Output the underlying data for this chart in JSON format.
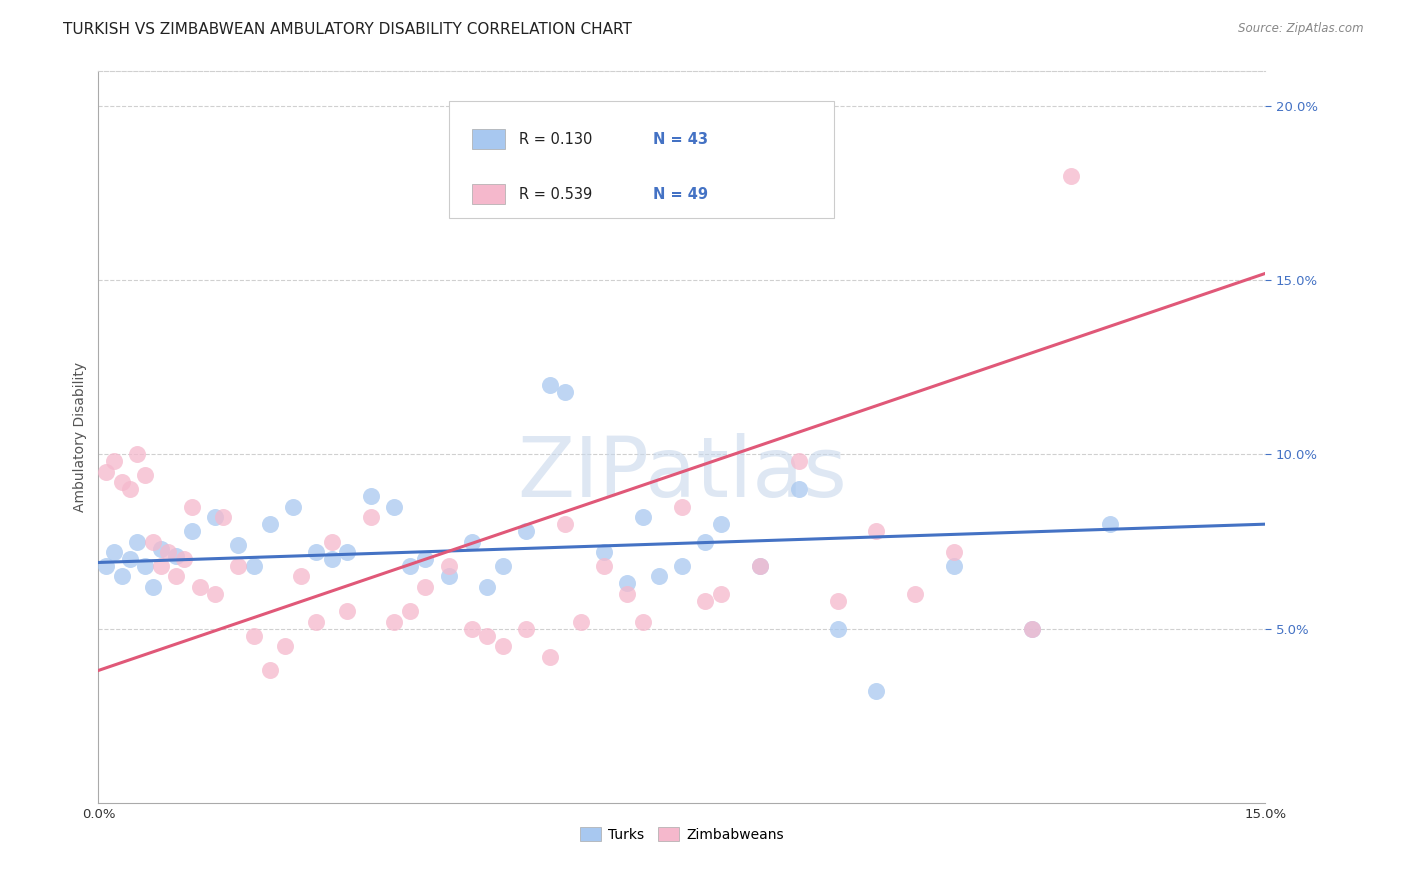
{
  "title": "TURKISH VS ZIMBABWEAN AMBULATORY DISABILITY CORRELATION CHART",
  "source": "Source: ZipAtlas.com",
  "ylabel": "Ambulatory Disability",
  "xmin": 0.0,
  "xmax": 0.15,
  "ymin": 0.0,
  "ymax": 0.21,
  "yticks": [
    0.05,
    0.1,
    0.15,
    0.2
  ],
  "ytick_labels": [
    "5.0%",
    "10.0%",
    "15.0%",
    "20.0%"
  ],
  "turks_color": "#a8c8f0",
  "zimbabweans_color": "#f5b8cc",
  "turks_line_color": "#4472c4",
  "zimbabweans_line_color": "#e05878",
  "R_turks": 0.13,
  "N_turks": 43,
  "R_zimbabweans": 0.539,
  "N_zimbabweans": 49,
  "turks_x": [
    0.001,
    0.002,
    0.003,
    0.004,
    0.005,
    0.006,
    0.007,
    0.008,
    0.01,
    0.012,
    0.015,
    0.018,
    0.02,
    0.022,
    0.025,
    0.028,
    0.03,
    0.032,
    0.035,
    0.038,
    0.04,
    0.042,
    0.045,
    0.048,
    0.05,
    0.052,
    0.055,
    0.058,
    0.06,
    0.065,
    0.068,
    0.07,
    0.072,
    0.075,
    0.078,
    0.08,
    0.085,
    0.09,
    0.095,
    0.1,
    0.11,
    0.12,
    0.13
  ],
  "turks_y": [
    0.068,
    0.072,
    0.065,
    0.07,
    0.075,
    0.068,
    0.062,
    0.073,
    0.071,
    0.078,
    0.082,
    0.074,
    0.068,
    0.08,
    0.085,
    0.072,
    0.07,
    0.072,
    0.088,
    0.085,
    0.068,
    0.07,
    0.065,
    0.075,
    0.062,
    0.068,
    0.078,
    0.12,
    0.118,
    0.072,
    0.063,
    0.082,
    0.065,
    0.068,
    0.075,
    0.08,
    0.068,
    0.09,
    0.05,
    0.032,
    0.068,
    0.05,
    0.08
  ],
  "zimbabweans_x": [
    0.001,
    0.002,
    0.003,
    0.004,
    0.005,
    0.006,
    0.007,
    0.008,
    0.009,
    0.01,
    0.011,
    0.012,
    0.013,
    0.015,
    0.016,
    0.018,
    0.02,
    0.022,
    0.024,
    0.026,
    0.028,
    0.03,
    0.032,
    0.035,
    0.038,
    0.04,
    0.042,
    0.045,
    0.048,
    0.05,
    0.052,
    0.055,
    0.058,
    0.06,
    0.062,
    0.065,
    0.068,
    0.07,
    0.075,
    0.078,
    0.08,
    0.085,
    0.09,
    0.095,
    0.1,
    0.105,
    0.11,
    0.12,
    0.125
  ],
  "zimbabweans_y": [
    0.095,
    0.098,
    0.092,
    0.09,
    0.1,
    0.094,
    0.075,
    0.068,
    0.072,
    0.065,
    0.07,
    0.085,
    0.062,
    0.06,
    0.082,
    0.068,
    0.048,
    0.038,
    0.045,
    0.065,
    0.052,
    0.075,
    0.055,
    0.082,
    0.052,
    0.055,
    0.062,
    0.068,
    0.05,
    0.048,
    0.045,
    0.05,
    0.042,
    0.08,
    0.052,
    0.068,
    0.06,
    0.052,
    0.085,
    0.058,
    0.06,
    0.068,
    0.098,
    0.058,
    0.078,
    0.06,
    0.072,
    0.05,
    0.18
  ],
  "watermark": "ZIPatlas",
  "background_color": "#ffffff",
  "grid_color": "#d0d0d0",
  "title_fontsize": 11,
  "axis_label_fontsize": 10,
  "tick_label_fontsize": 9.5,
  "legend_fontsize": 10.5
}
